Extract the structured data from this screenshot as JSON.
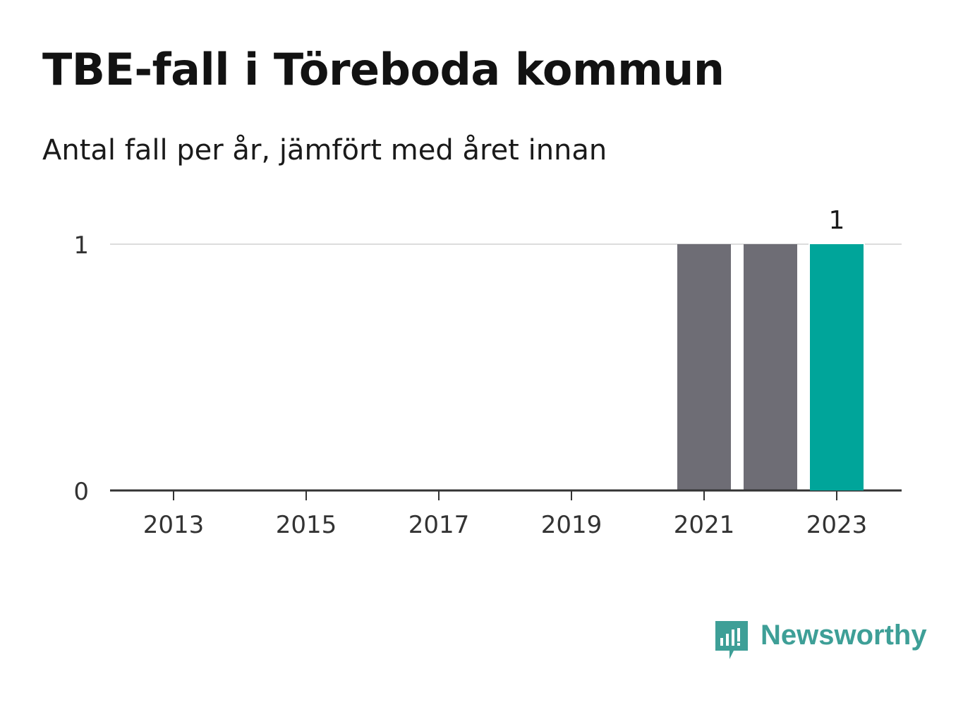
{
  "header": {
    "title": "TBE-fall i Töreboda kommun",
    "subtitle": "Antal fall per år, jämfört med året innan"
  },
  "brand": {
    "name": "Newsworthy",
    "color": "#3e9f97"
  },
  "chart_data": {
    "type": "bar",
    "title": "TBE-fall i Töreboda kommun",
    "subtitle": "Antal fall per år, jämfört med året innan",
    "categories": [
      "2013",
      "2014",
      "2015",
      "2016",
      "2017",
      "2018",
      "2019",
      "2020",
      "2021",
      "2022",
      "2023"
    ],
    "values": [
      0,
      0,
      0,
      0,
      0,
      0,
      0,
      0,
      1,
      1,
      1
    ],
    "highlight_index": 10,
    "colors": {
      "bar": "#6e6d75",
      "highlight": "#00a59a",
      "grid": "#dcdcdc",
      "axis": "#333333"
    },
    "xticks": [
      "2013",
      "2015",
      "2017",
      "2019",
      "2021",
      "2023"
    ],
    "yticks": [
      0,
      1
    ],
    "ylim": [
      0,
      1
    ],
    "data_labels": [
      {
        "category": "2023",
        "text": "1"
      }
    ],
    "xlabel": "",
    "ylabel": "",
    "grid": true
  }
}
